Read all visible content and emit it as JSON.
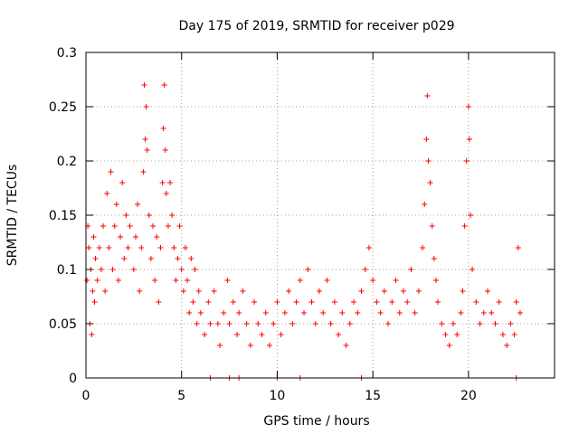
{
  "chart_data": {
    "type": "scatter",
    "title": "Day 175 of 2019, SRMTID for receiver p029",
    "xlabel": "GPS time / hours",
    "ylabel": "SRMTID / TECUs",
    "xlim": [
      0,
      24.5
    ],
    "ylim": [
      0,
      0.3
    ],
    "xticks": [
      0,
      5,
      10,
      15,
      20
    ],
    "yticks": [
      0,
      0.05,
      0.1,
      0.15,
      0.2,
      0.25,
      0.3
    ],
    "grid": true,
    "marker": "+",
    "marker_color": "#ff0000",
    "series": [
      {
        "name": "SRMTID p029",
        "points": [
          [
            0.05,
            0.09
          ],
          [
            0.1,
            0.14
          ],
          [
            0.15,
            0.12
          ],
          [
            0.2,
            0.05
          ],
          [
            0.25,
            0.1
          ],
          [
            0.3,
            0.04
          ],
          [
            0.35,
            0.08
          ],
          [
            0.4,
            0.13
          ],
          [
            0.45,
            0.07
          ],
          [
            0.5,
            0.11
          ],
          [
            0.6,
            0.09
          ],
          [
            0.7,
            0.12
          ],
          [
            0.8,
            0.1
          ],
          [
            0.9,
            0.14
          ],
          [
            1.0,
            0.08
          ],
          [
            1.1,
            0.17
          ],
          [
            1.2,
            0.12
          ],
          [
            1.3,
            0.19
          ],
          [
            1.4,
            0.1
          ],
          [
            1.5,
            0.14
          ],
          [
            1.6,
            0.16
          ],
          [
            1.7,
            0.09
          ],
          [
            1.8,
            0.13
          ],
          [
            1.9,
            0.18
          ],
          [
            2.0,
            0.11
          ],
          [
            2.1,
            0.15
          ],
          [
            2.2,
            0.12
          ],
          [
            2.3,
            0.14
          ],
          [
            2.5,
            0.1
          ],
          [
            2.6,
            0.13
          ],
          [
            2.7,
            0.16
          ],
          [
            2.8,
            0.08
          ],
          [
            2.9,
            0.12
          ],
          [
            3.0,
            0.19
          ],
          [
            3.05,
            0.27
          ],
          [
            3.1,
            0.22
          ],
          [
            3.15,
            0.25
          ],
          [
            3.2,
            0.21
          ],
          [
            3.3,
            0.15
          ],
          [
            3.4,
            0.11
          ],
          [
            3.5,
            0.14
          ],
          [
            3.6,
            0.09
          ],
          [
            3.7,
            0.13
          ],
          [
            3.8,
            0.07
          ],
          [
            3.9,
            0.12
          ],
          [
            4.0,
            0.18
          ],
          [
            4.05,
            0.23
          ],
          [
            4.1,
            0.27
          ],
          [
            4.15,
            0.21
          ],
          [
            4.2,
            0.17
          ],
          [
            4.3,
            0.14
          ],
          [
            4.4,
            0.18
          ],
          [
            4.5,
            0.15
          ],
          [
            4.6,
            0.12
          ],
          [
            4.7,
            0.09
          ],
          [
            4.8,
            0.11
          ],
          [
            4.9,
            0.14
          ],
          [
            5.0,
            0.1
          ],
          [
            5.1,
            0.08
          ],
          [
            5.2,
            0.12
          ],
          [
            5.3,
            0.09
          ],
          [
            5.4,
            0.06
          ],
          [
            5.5,
            0.11
          ],
          [
            5.6,
            0.07
          ],
          [
            5.7,
            0.1
          ],
          [
            5.8,
            0.05
          ],
          [
            5.9,
            0.08
          ],
          [
            6.0,
            0.06
          ],
          [
            6.2,
            0.04
          ],
          [
            6.4,
            0.07
          ],
          [
            6.5,
            0.05
          ],
          [
            6.7,
            0.08
          ],
          [
            6.9,
            0.05
          ],
          [
            7.0,
            0.03
          ],
          [
            7.2,
            0.06
          ],
          [
            7.4,
            0.09
          ],
          [
            7.5,
            0.05
          ],
          [
            7.7,
            0.07
          ],
          [
            7.9,
            0.04
          ],
          [
            8.0,
            0.06
          ],
          [
            8.2,
            0.08
          ],
          [
            8.4,
            0.05
          ],
          [
            8.6,
            0.03
          ],
          [
            8.8,
            0.07
          ],
          [
            9.0,
            0.05
          ],
          [
            9.2,
            0.04
          ],
          [
            9.4,
            0.06
          ],
          [
            9.6,
            0.03
          ],
          [
            9.8,
            0.05
          ],
          [
            10.0,
            0.07
          ],
          [
            10.2,
            0.04
          ],
          [
            10.4,
            0.06
          ],
          [
            10.6,
            0.08
          ],
          [
            10.8,
            0.05
          ],
          [
            11.0,
            0.07
          ],
          [
            11.2,
            0.09
          ],
          [
            11.4,
            0.06
          ],
          [
            11.6,
            0.1
          ],
          [
            11.8,
            0.07
          ],
          [
            12.0,
            0.05
          ],
          [
            12.2,
            0.08
          ],
          [
            12.4,
            0.06
          ],
          [
            12.6,
            0.09
          ],
          [
            12.8,
            0.05
          ],
          [
            13.0,
            0.07
          ],
          [
            13.2,
            0.04
          ],
          [
            13.4,
            0.06
          ],
          [
            13.6,
            0.03
          ],
          [
            13.8,
            0.05
          ],
          [
            14.0,
            0.07
          ],
          [
            14.2,
            0.06
          ],
          [
            14.4,
            0.08
          ],
          [
            14.6,
            0.1
          ],
          [
            14.8,
            0.12
          ],
          [
            15.0,
            0.09
          ],
          [
            15.2,
            0.07
          ],
          [
            15.4,
            0.06
          ],
          [
            15.6,
            0.08
          ],
          [
            15.8,
            0.05
          ],
          [
            16.0,
            0.07
          ],
          [
            16.2,
            0.09
          ],
          [
            16.4,
            0.06
          ],
          [
            16.6,
            0.08
          ],
          [
            16.8,
            0.07
          ],
          [
            17.0,
            0.1
          ],
          [
            17.2,
            0.06
          ],
          [
            17.4,
            0.08
          ],
          [
            17.6,
            0.12
          ],
          [
            17.7,
            0.16
          ],
          [
            17.8,
            0.22
          ],
          [
            17.85,
            0.26
          ],
          [
            17.9,
            0.2
          ],
          [
            18.0,
            0.18
          ],
          [
            18.1,
            0.14
          ],
          [
            18.2,
            0.11
          ],
          [
            18.3,
            0.09
          ],
          [
            18.4,
            0.07
          ],
          [
            18.6,
            0.05
          ],
          [
            18.8,
            0.04
          ],
          [
            19.0,
            0.03
          ],
          [
            19.2,
            0.05
          ],
          [
            19.4,
            0.04
          ],
          [
            19.6,
            0.06
          ],
          [
            19.7,
            0.08
          ],
          [
            19.8,
            0.14
          ],
          [
            19.9,
            0.2
          ],
          [
            20.0,
            0.25
          ],
          [
            20.05,
            0.22
          ],
          [
            20.1,
            0.15
          ],
          [
            20.2,
            0.1
          ],
          [
            20.4,
            0.07
          ],
          [
            20.6,
            0.05
          ],
          [
            20.8,
            0.06
          ],
          [
            21.0,
            0.08
          ],
          [
            21.2,
            0.06
          ],
          [
            21.4,
            0.05
          ],
          [
            21.6,
            0.07
          ],
          [
            21.8,
            0.04
          ],
          [
            22.0,
            0.03
          ],
          [
            22.2,
            0.05
          ],
          [
            22.4,
            0.04
          ],
          [
            22.5,
            0.07
          ],
          [
            22.6,
            0.12
          ],
          [
            22.7,
            0.06
          ]
        ]
      }
    ],
    "zero_markers_x": [
      6.5,
      7.5,
      8.0,
      10.0,
      11.2,
      14.4,
      22.5
    ]
  }
}
